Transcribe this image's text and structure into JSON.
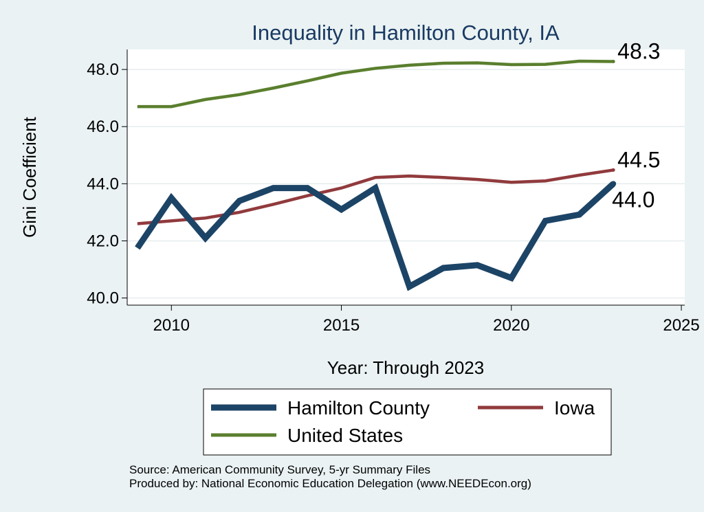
{
  "chart_data": {
    "type": "line",
    "title": "Inequality in Hamilton County, IA",
    "xlabel": "Year: Through 2023",
    "ylabel": "Gini Coefficient",
    "xlim": [
      2008.7,
      2025.1
    ],
    "ylim": [
      39.75,
      48.7
    ],
    "x_ticks": [
      {
        "value": 2010,
        "label": "2010"
      },
      {
        "value": 2015,
        "label": "2015"
      },
      {
        "value": 2020,
        "label": "2020"
      },
      {
        "value": 2025,
        "label": "2025"
      }
    ],
    "y_ticks": [
      {
        "value": 40,
        "label": "40.0"
      },
      {
        "value": 42,
        "label": "42.0"
      },
      {
        "value": 44,
        "label": "44.0"
      },
      {
        "value": 46,
        "label": "46.0"
      },
      {
        "value": 48,
        "label": "48.0"
      }
    ],
    "grid": true,
    "x": [
      2009,
      2010,
      2011,
      2012,
      2013,
      2014,
      2015,
      2016,
      2017,
      2018,
      2019,
      2020,
      2021,
      2022,
      2023
    ],
    "series": [
      {
        "key": "hamilton",
        "name": "Hamilton County",
        "color": "#1c4466",
        "values": [
          41.75,
          43.5,
          42.1,
          43.4,
          43.85,
          43.85,
          43.1,
          43.85,
          40.4,
          41.05,
          41.15,
          40.7,
          42.7,
          42.92,
          44.0
        ],
        "end_label": "44.0"
      },
      {
        "key": "iowa",
        "name": "Iowa",
        "color": "#913a3d",
        "values": [
          42.6,
          42.7,
          42.8,
          43.0,
          43.28,
          43.58,
          43.85,
          44.22,
          44.27,
          44.22,
          44.15,
          44.05,
          44.1,
          44.3,
          44.48
        ],
        "end_label": "44.5"
      },
      {
        "key": "us",
        "name": "United States",
        "color": "#5a7f2e",
        "values": [
          46.7,
          46.7,
          46.95,
          47.12,
          47.35,
          47.6,
          47.87,
          48.04,
          48.15,
          48.22,
          48.23,
          48.17,
          48.18,
          48.29,
          48.28
        ],
        "end_label": "48.3"
      }
    ],
    "legend": {
      "position": "bottom"
    },
    "notes": [
      "Source: American Community Survey, 5-yr Summary Files",
      "Produced by: National Economic Education Delegation (www.NEEDEcon.org)"
    ]
  }
}
